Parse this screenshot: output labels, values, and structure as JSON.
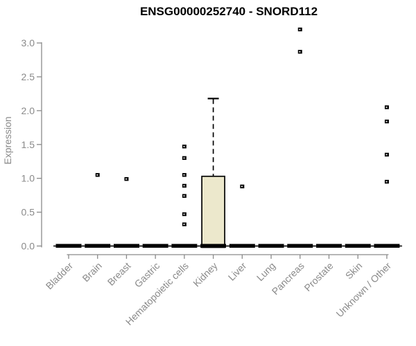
{
  "chart_data": {
    "type": "boxplot",
    "title": "ENSG00000252740 - SNORD112",
    "xlabel": "",
    "ylabel": "Expression",
    "ylim": [
      0,
      3.2
    ],
    "yticks": [
      0.0,
      0.5,
      1.0,
      1.5,
      2.0,
      2.5,
      3.0
    ],
    "grid": false,
    "legend": null,
    "categories": [
      "Bladder",
      "Brain",
      "Breast",
      "Gastric",
      "Hematopoietic cells",
      "Kidney",
      "Liver",
      "Lung",
      "Pancreas",
      "Prostate",
      "Skin",
      "Unknown / Other"
    ],
    "boxes": [
      {
        "category": "Bladder",
        "whisker_low": 0,
        "q1": 0,
        "median": 0,
        "q3": 0,
        "whisker_high": 0,
        "outliers": []
      },
      {
        "category": "Brain",
        "whisker_low": 0,
        "q1": 0,
        "median": 0,
        "q3": 0,
        "whisker_high": 0,
        "outliers": [
          1.05
        ]
      },
      {
        "category": "Breast",
        "whisker_low": 0,
        "q1": 0,
        "median": 0,
        "q3": 0,
        "whisker_high": 0,
        "outliers": [
          0.99
        ]
      },
      {
        "category": "Gastric",
        "whisker_low": 0,
        "q1": 0,
        "median": 0,
        "q3": 0,
        "whisker_high": 0,
        "outliers": []
      },
      {
        "category": "Hematopoietic cells",
        "whisker_low": 0,
        "q1": 0,
        "median": 0,
        "q3": 0,
        "whisker_high": 0,
        "outliers": [
          1.47,
          1.3,
          1.05,
          0.89,
          0.74,
          0.47,
          0.32
        ]
      },
      {
        "category": "Kidney",
        "whisker_low": 0,
        "q1": 0,
        "median": 0,
        "q3": 1.03,
        "whisker_high": 2.18,
        "outliers": []
      },
      {
        "category": "Liver",
        "whisker_low": 0,
        "q1": 0,
        "median": 0,
        "q3": 0,
        "whisker_high": 0,
        "outliers": [
          0.88
        ]
      },
      {
        "category": "Lung",
        "whisker_low": 0,
        "q1": 0,
        "median": 0,
        "q3": 0,
        "whisker_high": 0,
        "outliers": []
      },
      {
        "category": "Pancreas",
        "whisker_low": 0,
        "q1": 0,
        "median": 0,
        "q3": 0,
        "whisker_high": 0,
        "outliers": [
          3.2,
          2.87
        ]
      },
      {
        "category": "Prostate",
        "whisker_low": 0,
        "q1": 0,
        "median": 0,
        "q3": 0,
        "whisker_high": 0,
        "outliers": []
      },
      {
        "category": "Skin",
        "whisker_low": 0,
        "q1": 0,
        "median": 0,
        "q3": 0,
        "whisker_high": 0,
        "outliers": []
      },
      {
        "category": "Unknown / Other",
        "whisker_low": 0,
        "q1": 0,
        "median": 0,
        "q3": 0,
        "whisker_high": 0,
        "outliers": [
          2.05,
          1.84,
          1.35,
          0.95
        ]
      }
    ],
    "colors": {
      "box_fill": "#ece8cc",
      "box_stroke": "#000000",
      "median": "#000000",
      "outlier": "#000000",
      "axis": "#8a8a8a",
      "tick_label": "#8a8a8a",
      "title": "#000000"
    }
  }
}
